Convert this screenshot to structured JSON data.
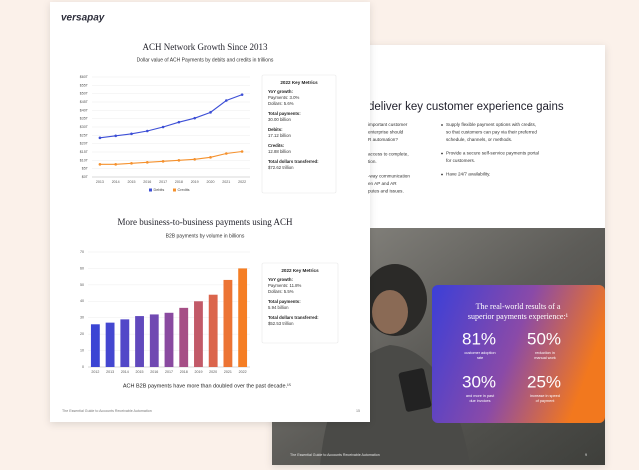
{
  "front_page": {
    "logo": "versapay",
    "chart_1": {
      "type": "line",
      "title": "ACH Network Growth Since 2013",
      "subtitle": "Dollar value of ACH Payments by debits and credits in trillions",
      "categories": [
        "2013",
        "2014",
        "2015",
        "2016",
        "2017",
        "2018",
        "2019",
        "2020",
        "2021",
        "2022"
      ],
      "series": [
        {
          "name": "Debits",
          "color": "#3d4fd6",
          "values": [
            23.5,
            24.7,
            25.9,
            27.6,
            30.0,
            32.9,
            35.3,
            38.8,
            45.9,
            49.4
          ]
        },
        {
          "name": "Credits",
          "color": "#f5912d",
          "values": [
            7.6,
            7.6,
            8.2,
            8.8,
            9.4,
            10.0,
            10.6,
            11.8,
            14.1,
            15.3
          ]
        }
      ],
      "ylim": [
        0,
        60
      ],
      "yticks": [
        {
          "value": 0,
          "label": "$0T"
        },
        {
          "value": 5,
          "label": "$5T"
        },
        {
          "value": 10,
          "label": "$10T"
        },
        {
          "value": 15,
          "label": "$15T"
        },
        {
          "value": 20,
          "label": "$20T"
        },
        {
          "value": 25,
          "label": "$25T"
        },
        {
          "value": 30,
          "label": "$30T"
        },
        {
          "value": 35,
          "label": "$35T"
        },
        {
          "value": 40,
          "label": "$40T"
        },
        {
          "value": 45,
          "label": "$45T"
        },
        {
          "value": 50,
          "label": "$50T"
        },
        {
          "value": 55,
          "label": "$55T"
        },
        {
          "value": 60,
          "label": "$60T"
        }
      ],
      "grid": true
    },
    "metrics_1": {
      "title": "2022 Key Metrics",
      "items": [
        {
          "label": "YoY growth:",
          "lines": [
            "Payments: 3.0%",
            "Dollars: 5.6%"
          ]
        },
        {
          "label": "Total payments:",
          "lines": [
            "30.00 billion"
          ]
        },
        {
          "label": "Debits:",
          "lines": [
            "17.12 billion"
          ]
        },
        {
          "label": "Credits:",
          "lines": [
            "12.88 billion"
          ]
        },
        {
          "label": "Total dollars transferred:",
          "lines": [
            "$72.62 trillion"
          ]
        }
      ]
    },
    "chart_2": {
      "type": "bar",
      "title": "More business-to-business payments using ACH",
      "subtitle": "B2B payments by volume in billions",
      "categories": [
        "2012",
        "2013",
        "2014",
        "2015",
        "2016",
        "2017",
        "2018",
        "2019",
        "2020",
        "2021",
        "2022"
      ],
      "values": [
        26,
        27,
        29,
        31,
        32,
        33,
        36,
        40,
        44,
        53,
        60
      ],
      "colors": [
        "#3b45d4",
        "#4447d0",
        "#5248c8",
        "#6149bd",
        "#7049b2",
        "#8a4aa0",
        "#a64f86",
        "#c25a68",
        "#db654c",
        "#ec7434",
        "#f57e24"
      ],
      "ylim": [
        0,
        70
      ],
      "yticks": [
        0,
        10,
        20,
        30,
        40,
        50,
        60,
        70
      ],
      "grid": true
    },
    "metrics_2": {
      "title": "2022 Key Metrics",
      "items": [
        {
          "label": "YoY growth:",
          "lines": [
            "Payments: 11.8%",
            "Dollars: 5.5%"
          ]
        },
        {
          "label": "Total payments:",
          "lines": [
            "5.94 billion"
          ]
        },
        {
          "label": "Total dollars transferred:",
          "lines": [
            "$52.53 trillion"
          ]
        }
      ]
    },
    "footnote": "ACH B2B payments have more than doubled over the past decade.¹⁵",
    "footer": "The Essential Guide to Accounts Receivable Automation",
    "page_number": "15"
  },
  "back_page": {
    "heading": "deliver key customer experience gains",
    "left_column": [
      [
        "important customer",
        "enterprise should",
        "R automation?"
      ],
      [
        "access to complete,",
        "tion."
      ],
      [
        "-way communication",
        "en AP and AR",
        "putes and issues."
      ]
    ],
    "bullets": [
      [
        "Supply flexible payment options with credits,",
        "so that customers can pay via their preferred",
        "schedule, channels, or methods."
      ],
      [
        "Provide a secure self-service payments portal",
        "for customers."
      ],
      [
        "Have 24/7 availability."
      ]
    ],
    "card": {
      "heading": [
        "The real-world results of a",
        "superior payments experience:¹"
      ],
      "stats": [
        {
          "value": "81%",
          "label": [
            "customer adoption",
            "rate"
          ]
        },
        {
          "value": "50%",
          "label": [
            "reduction in",
            "manual work"
          ]
        },
        {
          "value": "30%",
          "label": [
            "and more in past",
            "due invoices"
          ]
        },
        {
          "value": "25%",
          "label": [
            "increase in speed",
            "of payment"
          ]
        }
      ]
    },
    "footer": "The Essential Guide to Accounts Receivable Automation",
    "page_number": "9"
  }
}
